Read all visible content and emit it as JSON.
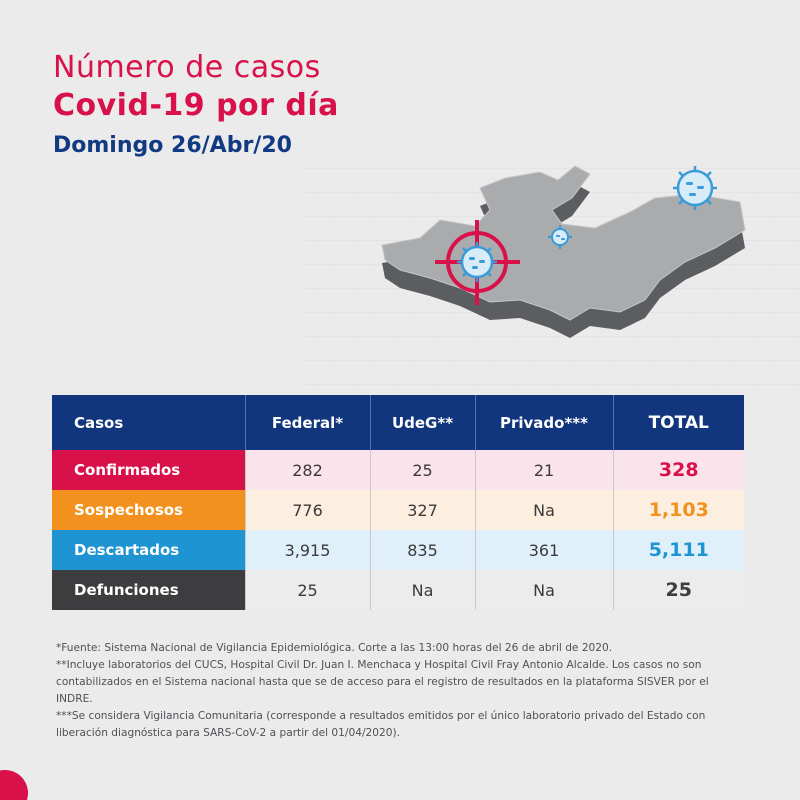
{
  "title": {
    "line1": "Número de casos",
    "line2": "Covid-19 por día",
    "date": "Domingo 26/Abr/20"
  },
  "colors": {
    "brand_red": "#d9114a",
    "navy": "#12367e",
    "orange": "#f3911f",
    "blue": "#1f94d2",
    "dark_gray": "#3d3d40",
    "map_gray": "#a9abad",
    "virus_blue": "#3a9bd8"
  },
  "icons": [
    "virus-icon",
    "target-crosshair-icon",
    "state-map-icon"
  ],
  "table": {
    "headers": [
      "Casos",
      "Federal*",
      "UdeG**",
      "Privado***",
      "TOTAL"
    ],
    "rows": [
      {
        "label": "Confirmados",
        "federal": "282",
        "udeg": "25",
        "privado": "21",
        "total": "328",
        "label_color": "#d9114a",
        "row_tint": "#fbe3eb",
        "total_color": "#d9114a"
      },
      {
        "label": "Sospechosos",
        "federal": "776",
        "udeg": "327",
        "privado": "Na",
        "total": "1,103",
        "label_color": "#f3911f",
        "row_tint": "#fdefe0",
        "total_color": "#f3911f"
      },
      {
        "label": "Descartados",
        "federal": "3,915",
        "udeg": "835",
        "privado": "361",
        "total": "5,111",
        "label_color": "#1f94d2",
        "row_tint": "#e0f0fa",
        "total_color": "#1f94d2"
      },
      {
        "label": "Defunciones",
        "federal": "25",
        "udeg": "Na",
        "privado": "Na",
        "total": "25",
        "label_color": "#3d3d40",
        "row_tint": "#ececed",
        "total_color": "#3d3d40"
      }
    ]
  },
  "footnotes": [
    "*Fuente: Sistema Nacional de Vigilancia Epidemiológica. Corte a las 13:00 horas del 26 de abril de 2020.",
    "**Incluye laboratorios del CUCS, Hospital Civil Dr. Juan I. Menchaca y Hospital Civil Fray Antonio Alcalde. Los casos no son contabilizados en el Sistema nacional hasta que se de acceso para el registro de resultados en la plataforma SISVER por el INDRE.",
    "***Se considera Vigilancia Comunitaria (corresponde a resultados emitidos por el único laboratorio privado del Estado con liberación diagnóstica para SARS-CoV-2 a partir del 01/04/2020)."
  ]
}
